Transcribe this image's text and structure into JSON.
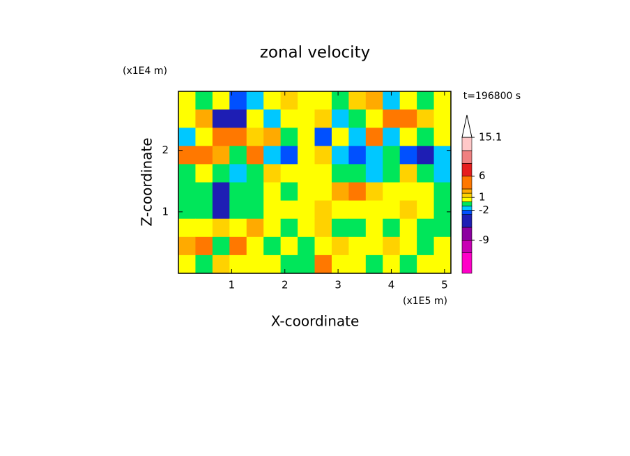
{
  "chart_data": {
    "type": "contour",
    "title": "zonal velocity",
    "x_label": "X-coordinate",
    "y_label": "Z-coordinate",
    "x_unit": "(x1E5 m)",
    "y_unit": "(x1E4 m)",
    "annotation": "t=196800 s",
    "xlim": [
      0,
      5.12
    ],
    "ylim": [
      0,
      2.96
    ],
    "xticks": [
      1,
      2,
      3,
      4,
      5
    ],
    "yticks": [
      1,
      2
    ],
    "z": [
      [
        0.5,
        -0.5,
        0.5,
        -2.5,
        -1.5,
        0.5,
        1.5,
        0.5,
        0.5,
        -0.5,
        1.5,
        2.5,
        -1.5,
        0.5,
        -0.5,
        0.5
      ],
      [
        0.5,
        2.5,
        -6,
        -4,
        0.5,
        -1.5,
        0.5,
        0.5,
        1.5,
        -1.5,
        -0.5,
        0.5,
        3.5,
        4,
        1.5,
        0.5
      ],
      [
        -1.5,
        0.5,
        3.5,
        4,
        1.5,
        2.5,
        -0.5,
        0.5,
        -3,
        0.5,
        -1.5,
        3.5,
        -1.5,
        0.5,
        -0.5,
        0.5
      ],
      [
        3.5,
        4,
        2.5,
        -0.5,
        3.5,
        -1.5,
        -2.5,
        0.5,
        1.5,
        -1.5,
        -2.5,
        -1.5,
        -0.5,
        -2.5,
        -5,
        -1.5
      ],
      [
        -0.5,
        0.5,
        -0.5,
        -1.5,
        -0.5,
        1.5,
        0.5,
        0.5,
        0.5,
        -0.5,
        -0.5,
        -1.5,
        -0.5,
        1.5,
        -0.5,
        -1.5
      ],
      [
        -0.5,
        -0.5,
        -4,
        -0.5,
        -0.5,
        0.5,
        -0.5,
        0.5,
        0.5,
        2.5,
        3.5,
        1.5,
        0.5,
        0.5,
        0.5,
        -0.5
      ],
      [
        -0.5,
        -0.5,
        -5,
        -0.5,
        -0.5,
        0.5,
        0.5,
        0.5,
        1.5,
        0.5,
        0.5,
        0.5,
        0.5,
        1.5,
        0.5,
        -0.5
      ],
      [
        0.5,
        0.5,
        1.5,
        0.5,
        2.5,
        0.5,
        -0.5,
        0.5,
        1.5,
        -0.5,
        -0.5,
        0.5,
        -0.5,
        0.5,
        -0.5,
        -0.5
      ],
      [
        2.5,
        3.5,
        -0.5,
        4,
        0.5,
        -0.5,
        0.5,
        -0.5,
        0.5,
        1.5,
        0.5,
        0.5,
        1.5,
        0.5,
        -0.5,
        0.5
      ],
      [
        0.5,
        -0.5,
        1.5,
        0.5,
        0.5,
        0.5,
        -0.5,
        -0.5,
        3.5,
        0.5,
        0.5,
        -0.5,
        0.5,
        -0.5,
        0.5,
        0.5
      ]
    ],
    "colorbar": {
      "lim": [
        -16.8,
        15.1
      ],
      "levels": [
        -12,
        -9,
        -6,
        -3,
        -2,
        -1,
        0,
        1,
        2,
        3,
        6,
        9,
        12,
        15.1
      ],
      "colors": [
        "#ff00c8",
        "#c800b4",
        "#8c00a0",
        "#1e1eb4",
        "#0050ff",
        "#00c8ff",
        "#00e65a",
        "#ffff00",
        "#ffd200",
        "#ffaa00",
        "#ff7800",
        "#e61e1e",
        "#f08080",
        "#ffc8c8",
        "#ffffff"
      ],
      "ticks": [
        15.1,
        6,
        1,
        -2,
        -9
      ]
    }
  }
}
